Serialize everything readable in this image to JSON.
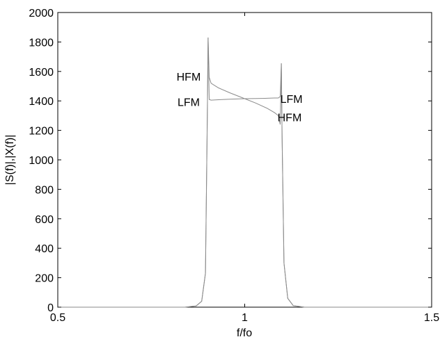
{
  "chart_data": {
    "type": "line",
    "title": "",
    "xlabel": "f/fo",
    "ylabel": "|S(f)|,|X(f)|",
    "xlim": [
      0.5,
      1.5
    ],
    "ylim": [
      0,
      2000
    ],
    "x_ticks": [
      0.5,
      1,
      1.5
    ],
    "x_tick_labels": [
      "0.5",
      "1",
      "1.5"
    ],
    "y_ticks": [
      0,
      200,
      400,
      600,
      800,
      1000,
      1200,
      1400,
      1600,
      1800,
      2000
    ],
    "y_tick_labels": [
      "0",
      "200",
      "400",
      "600",
      "800",
      "1000",
      "1200",
      "1400",
      "1600",
      "1800",
      "2000"
    ],
    "grid": false,
    "legend": "none",
    "line_color": "#8a8a8a",
    "series": [
      {
        "x": [
          0.5,
          0.84,
          0.87,
          0.885,
          0.895,
          0.9,
          0.902,
          0.905,
          0.91,
          0.93,
          0.96,
          1.0,
          1.03,
          1.06,
          1.08,
          1.09,
          1.095,
          1.098,
          1.1,
          1.105,
          1.115,
          1.13,
          1.16,
          1.5
        ],
        "y": [
          0,
          0,
          8,
          40,
          230,
          1300,
          1830,
          1560,
          1520,
          1488,
          1455,
          1415,
          1385,
          1350,
          1320,
          1300,
          1240,
          1655,
          1150,
          300,
          60,
          10,
          0,
          0
        ]
      },
      {
        "x": [
          0.5,
          0.84,
          0.87,
          0.885,
          0.895,
          0.9,
          0.902,
          0.905,
          0.91,
          0.93,
          0.96,
          1.0,
          1.03,
          1.06,
          1.08,
          1.09,
          1.095,
          1.098,
          1.1,
          1.105,
          1.115,
          1.13,
          1.16,
          1.5
        ],
        "y": [
          0,
          0,
          8,
          40,
          230,
          1300,
          1830,
          1410,
          1405,
          1408,
          1412,
          1415,
          1416,
          1418,
          1420,
          1420,
          1430,
          1655,
          1150,
          300,
          60,
          10,
          0,
          0
        ]
      }
    ],
    "annotations": [
      {
        "text": "HFM",
        "x": 0.85,
        "y": 1565
      },
      {
        "text": "LFM",
        "x": 0.85,
        "y": 1395
      },
      {
        "text": "LFM",
        "x": 1.125,
        "y": 1415
      },
      {
        "text": "HFM",
        "x": 1.12,
        "y": 1290
      }
    ]
  }
}
